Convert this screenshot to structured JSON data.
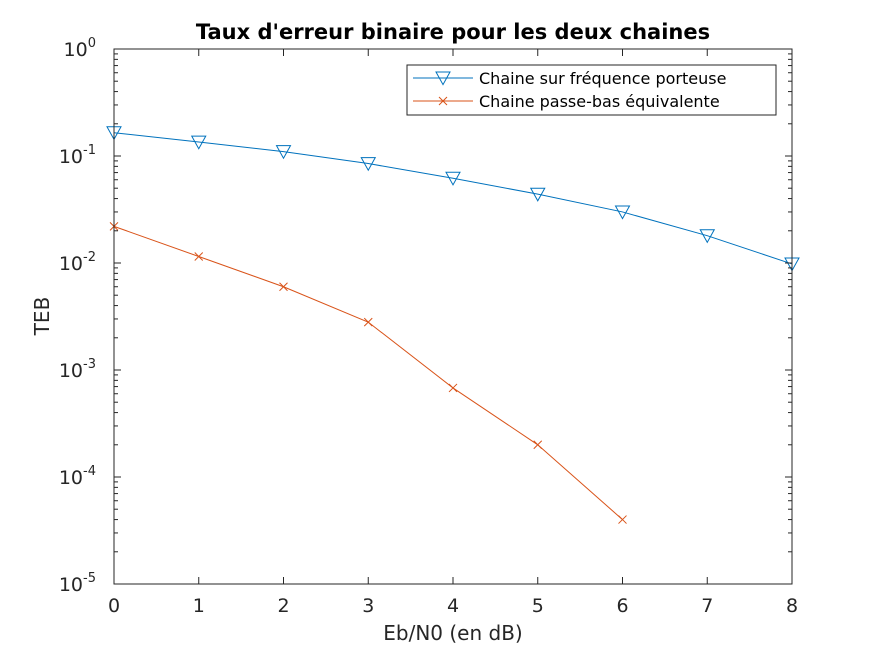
{
  "chart_data": {
    "type": "line",
    "title": "Taux d'erreur binaire pour les deux chaines",
    "xlabel": "Eb/N0 (en dB)",
    "ylabel": "TEB",
    "xlim": [
      0,
      8
    ],
    "ylim": [
      1e-05,
      1
    ],
    "yscale": "log",
    "grid": false,
    "legend_position": "top-right",
    "x_ticks": [
      "0",
      "1",
      "2",
      "3",
      "4",
      "5",
      "6",
      "7",
      "8"
    ],
    "y_ticks": [
      {
        "base": "10",
        "exp": "0"
      },
      {
        "base": "10",
        "exp": "-1"
      },
      {
        "base": "10",
        "exp": "-2"
      },
      {
        "base": "10",
        "exp": "-3"
      },
      {
        "base": "10",
        "exp": "-4"
      },
      {
        "base": "10",
        "exp": "-5"
      }
    ],
    "series": [
      {
        "name": "Chaine sur fréquence porteuse",
        "color": "#0072BD",
        "marker": "triangle-down",
        "x": [
          0,
          1,
          2,
          3,
          4,
          5,
          6,
          7,
          8
        ],
        "values": [
          0.165,
          0.135,
          0.11,
          0.085,
          0.062,
          0.044,
          0.03,
          0.018,
          0.0098
        ]
      },
      {
        "name": "Chaine passe-bas équivalente",
        "color": "#D95319",
        "marker": "x",
        "x": [
          0,
          1,
          2,
          3,
          4,
          5,
          6
        ],
        "values": [
          0.022,
          0.0115,
          0.006,
          0.0028,
          0.00068,
          0.0002,
          4e-05
        ]
      }
    ]
  }
}
